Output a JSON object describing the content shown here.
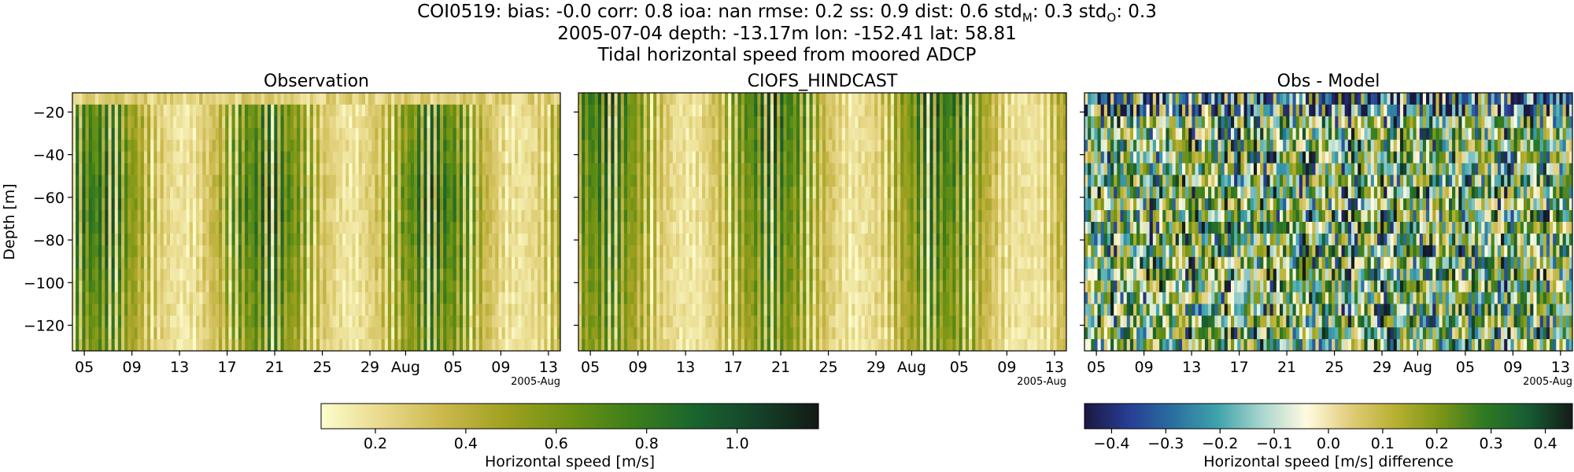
{
  "figure": {
    "title_line1": "COI0519: bias: -0.0  corr: 0.8  ioa: nan  rmse: 0.2  ss: 0.9  dist: 0.6  std",
    "std_m_sub": "M",
    "std_m_val": ": 0.3  std",
    "std_o_sub": "O",
    "std_o_val": ": 0.3",
    "title_line2": "2005-07-04 depth: -13.17m lon: -152.41 lat: 58.81",
    "title_line3": "Tidal horizontal speed from moored ADCP"
  },
  "chart_data": [
    {
      "type": "heatmap",
      "title": "Observation",
      "xlabel": "",
      "ylabel": "Depth [m]",
      "x_tick_labels": [
        "05",
        "09",
        "13",
        "17",
        "21",
        "25",
        "29",
        "Aug",
        "05",
        "09",
        "13"
      ],
      "x_offset_label": "2005-Aug",
      "x_range": [
        "2005-07-04",
        "2005-08-14"
      ],
      "y_ticks": [
        -20,
        -40,
        -60,
        -80,
        -100,
        -120
      ],
      "ylim": [
        -132,
        -11
      ],
      "colormap": "speed",
      "value_range": [
        0.08,
        1.18
      ],
      "description_values": "tidal speed varies in vertical stripes; strongest (~1.0 m/s) near 2005-07-22 to 2005-07-26 mid-depth"
    },
    {
      "type": "heatmap",
      "title": "CIOFS_HINDCAST",
      "xlabel": "",
      "ylabel": "",
      "x_tick_labels": [
        "05",
        "09",
        "13",
        "17",
        "21",
        "25",
        "29",
        "Aug",
        "05",
        "09",
        "13"
      ],
      "x_offset_label": "2005-Aug",
      "x_range": [
        "2005-07-04",
        "2005-08-14"
      ],
      "y_ticks": [
        -20,
        -40,
        -60,
        -80,
        -100,
        -120
      ],
      "ylim": [
        -132,
        -11
      ],
      "colormap": "speed",
      "value_range": [
        0.08,
        1.18
      ]
    },
    {
      "type": "heatmap",
      "title": "Obs - Model",
      "xlabel": "",
      "ylabel": "",
      "x_tick_labels": [
        "05",
        "09",
        "13",
        "17",
        "21",
        "25",
        "29",
        "Aug",
        "05",
        "09",
        "13"
      ],
      "x_offset_label": "2005-Aug",
      "x_range": [
        "2005-07-04",
        "2005-08-14"
      ],
      "y_ticks": [
        -20,
        -40,
        -60,
        -80,
        -100,
        -120
      ],
      "ylim": [
        -132,
        -11
      ],
      "colormap": "diff",
      "value_range": [
        -0.45,
        0.45
      ]
    }
  ],
  "colorbars": {
    "speed": {
      "label": "Horizontal speed [m/s]",
      "ticks": [
        0.2,
        0.4,
        0.6,
        0.8,
        1.0
      ],
      "tick_labels": [
        "0.2",
        "0.4",
        "0.6",
        "0.8",
        "1.0"
      ],
      "range": [
        0.08,
        1.18
      ],
      "colors": [
        "#fdfccc",
        "#e8d98a",
        "#c9b74a",
        "#9ea01f",
        "#6d9214",
        "#3d7e1a",
        "#19652e",
        "#15432a",
        "#121a14"
      ]
    },
    "diff": {
      "label": "Horizontal speed [m/s] difference",
      "ticks": [
        -0.4,
        -0.3,
        -0.2,
        -0.1,
        0.0,
        0.1,
        0.2,
        0.3,
        0.4
      ],
      "tick_labels": [
        "−0.4",
        "−0.3",
        "−0.2",
        "−0.1",
        "0.0",
        "0.1",
        "0.2",
        "0.3",
        "0.4"
      ],
      "range": [
        -0.45,
        0.45
      ],
      "colors": [
        "#1b1840",
        "#283d95",
        "#2a6fa0",
        "#3fa3ab",
        "#a9d6cf",
        "#fffbe0",
        "#e0cc7a",
        "#b8b031",
        "#7c9618",
        "#2f7a22",
        "#175c33",
        "#141c16"
      ]
    }
  }
}
